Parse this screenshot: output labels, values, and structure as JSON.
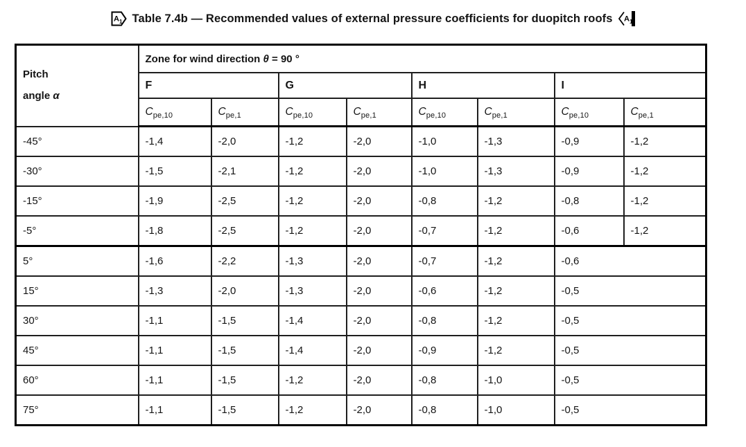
{
  "title": {
    "text": "Table 7.4b — Recommended values of external pressure coefficients for duopitch roofs",
    "amendment_marker": {
      "letter": "A",
      "number": "1"
    }
  },
  "table": {
    "pitch_header": {
      "line1": "Pitch",
      "line2": "angle",
      "symbol": "α"
    },
    "zone_header": {
      "prefix": "Zone for wind direction ",
      "symbol": "θ",
      "suffix": " = 90 °"
    },
    "zones": [
      "F",
      "G",
      "H",
      "I"
    ],
    "coeff": {
      "base": "C",
      "sub10": "pe,10",
      "sub1": "pe,1"
    },
    "rows": [
      {
        "pitch": "-45°",
        "values": [
          "-1,4",
          "-2,0",
          "-1,2",
          "-2,0",
          "-1,0",
          "-1,3",
          "-0,9",
          "-1,2"
        ],
        "i_merged": false,
        "thick_bottom": false
      },
      {
        "pitch": "-30°",
        "values": [
          "-1,5",
          "-2,1",
          "-1,2",
          "-2,0",
          "-1,0",
          "-1,3",
          "-0,9",
          "-1,2"
        ],
        "i_merged": false,
        "thick_bottom": false
      },
      {
        "pitch": "-15°",
        "values": [
          "-1,9",
          "-2,5",
          "-1,2",
          "-2,0",
          "-0,8",
          "-1,2",
          "-0,8",
          "-1,2"
        ],
        "i_merged": false,
        "thick_bottom": false
      },
      {
        "pitch": "-5°",
        "values": [
          "-1,8",
          "-2,5",
          "-1,2",
          "-2,0",
          "-0,7",
          "-1,2",
          "-0,6",
          "-1,2"
        ],
        "i_merged": false,
        "thick_bottom": true
      },
      {
        "pitch": "5°",
        "values": [
          "-1,6",
          "-2,2",
          "-1,3",
          "-2,0",
          "-0,7",
          "-1,2",
          "-0,6"
        ],
        "i_merged": true,
        "thick_bottom": false
      },
      {
        "pitch": "15°",
        "values": [
          "-1,3",
          "-2,0",
          "-1,3",
          "-2,0",
          "-0,6",
          "-1,2",
          "-0,5"
        ],
        "i_merged": true,
        "thick_bottom": false
      },
      {
        "pitch": "30°",
        "values": [
          "-1,1",
          "-1,5",
          "-1,4",
          "-2,0",
          "-0,8",
          "-1,2",
          "-0,5"
        ],
        "i_merged": true,
        "thick_bottom": false
      },
      {
        "pitch": "45°",
        "values": [
          "-1,1",
          "-1,5",
          "-1,4",
          "-2,0",
          "-0,9",
          "-1,2",
          "-0,5"
        ],
        "i_merged": true,
        "thick_bottom": false
      },
      {
        "pitch": "60°",
        "values": [
          "-1,1",
          "-1,5",
          "-1,2",
          "-2,0",
          "-0,8",
          "-1,0",
          "-0,5"
        ],
        "i_merged": true,
        "thick_bottom": false
      },
      {
        "pitch": "75°",
        "values": [
          "-1,1",
          "-1,5",
          "-1,2",
          "-2,0",
          "-0,8",
          "-1,0",
          "-0,5"
        ],
        "i_merged": true,
        "thick_bottom": false
      }
    ]
  }
}
